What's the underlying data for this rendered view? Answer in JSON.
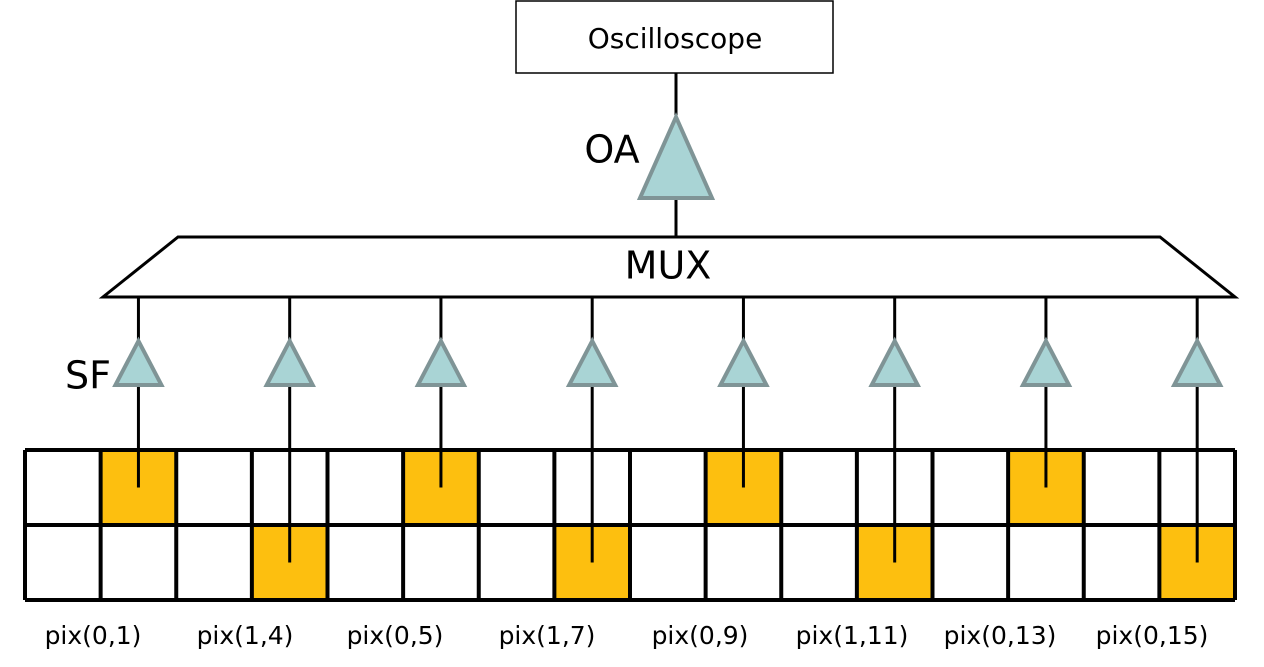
{
  "oscilloscope": "Oscilloscope",
  "amplifier": "OA",
  "mux": "MUX",
  "follower": "SF",
  "pixels": [
    "pix(0,1)",
    "pix(1,4)",
    "pix(0,5)",
    "pix(1,7)",
    "pix(0,9)",
    "pix(1,11)",
    "pix(0,13)",
    "pix(0,15)"
  ]
}
